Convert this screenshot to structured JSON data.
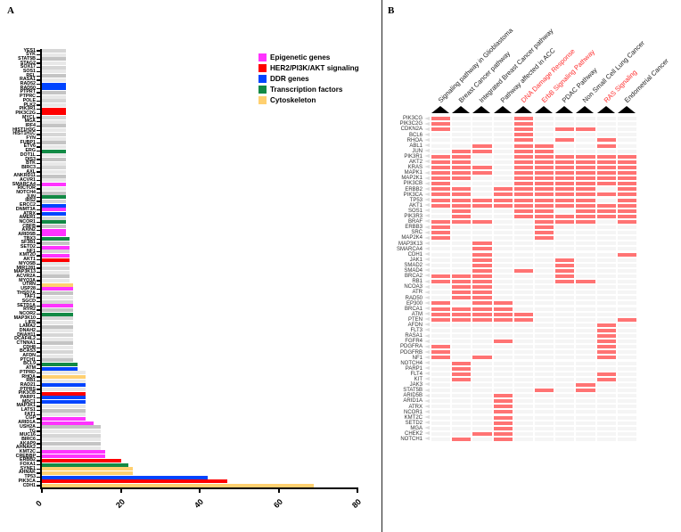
{
  "panels": {
    "a": "A",
    "b": "B"
  },
  "colors": {
    "epigenetic": "#ff33ff",
    "her2": "#ff0000",
    "ddr": "#0044ff",
    "tf": "#128a45",
    "cyto": "#ffd070",
    "other1": "#d6d6d6",
    "other2": "#e8e8e8",
    "other3": "#c4c4c4",
    "heat_on": "#ff7373",
    "heat_off": "#f5f5f5",
    "header_red": "#ff2b2b"
  },
  "legend": [
    {
      "key": "epigenetic",
      "label": "Epigenetic genes"
    },
    {
      "key": "her2",
      "label": "HER2/PI3K/AKT signaling"
    },
    {
      "key": "ddr",
      "label": "DDR genes"
    },
    {
      "key": "tf",
      "label": "Transcription factors"
    },
    {
      "key": "cyto",
      "label": "Cytoskeleton"
    }
  ],
  "chart_data": [
    {
      "type": "bar",
      "orientation": "horizontal",
      "title": "",
      "xlabel": "",
      "ylabel": "",
      "xlim": [
        0,
        80
      ],
      "xticks": [
        "0",
        "20",
        "40",
        "60",
        "80"
      ],
      "legend_position": "top-right",
      "categories": [
        "YES1",
        "SYK",
        "STAT5B",
        "STAG2",
        "SOX17",
        "SOS1",
        "REL",
        "RASA1",
        "RAD52",
        "RAD50",
        "PTPRT",
        "PTPRC",
        "POLE",
        "PLK2",
        "PIK3R1",
        "PIK3C2G",
        "MYCL",
        "MGA",
        "IRF4",
        "HIST1H3G",
        "HIST1H1C",
        "FYN",
        "FUBP1",
        "ETV6",
        "ERG",
        "DOT1L",
        "DIS3",
        "BTK",
        "BIRC3",
        "AXL",
        "ANKRD11",
        "ACVR1",
        "SMARCA4",
        "RICTOR",
        "NOTCH4",
        "JUN",
        "IRS2",
        "ERCC2",
        "DNMT3A",
        "ATRX",
        "AMER1",
        "NCOR1",
        "CBFB",
        "AXIN2",
        "ARID5B",
        "TBX3",
        "SF3B1",
        "SETD2",
        "NF1",
        "KMT2D",
        "AKT1",
        "MYO5B",
        "MIR1281",
        "MAP3K13",
        "ACVR2A",
        "MYO3A",
        "UTRN",
        "USP28",
        "THSD7A",
        "TAF1",
        "SGCD",
        "SETD1A",
        "RYR2",
        "NCOR2",
        "MAP3K10",
        "LIFR",
        "LAMA2",
        "DNAH2",
        "DNAH11",
        "DCAF4L2",
        "CTNNA1",
        "CDH8",
        "BCAS3",
        "AFDN",
        "PTCH1",
        "BCL9",
        "ATM",
        "PTPRD",
        "RHOA",
        "RB1",
        "RAD21",
        "PTPRS",
        "PIK3CB",
        "PARP1",
        "MDC1",
        "MAP3K1",
        "LATS1",
        "FAT1",
        "CGP",
        "ARID1A",
        "USH2A",
        "TG",
        "MUC16",
        "BIRC6",
        "AKAP9",
        "AHNAK2",
        "KMT2C",
        "CREBBP",
        "ERBB2",
        "FOXA1",
        "SYNE1",
        "AHNAK",
        "TP53",
        "PIK3CA",
        "CDH1"
      ],
      "values": [
        6,
        6,
        6,
        6,
        6,
        6,
        6,
        6,
        6,
        6,
        6,
        6,
        6,
        6,
        6,
        6,
        6,
        6,
        6,
        6,
        6,
        6,
        6,
        6,
        6,
        6,
        6,
        6,
        6,
        6,
        6,
        6,
        6,
        6,
        6,
        6,
        6,
        6,
        6,
        6,
        6,
        6,
        6,
        6,
        6,
        7,
        7,
        7,
        7,
        7,
        7,
        7,
        7,
        7,
        7,
        7,
        8,
        8,
        8,
        8,
        8,
        8,
        8,
        8,
        8,
        8,
        8,
        8,
        8,
        8,
        8,
        8,
        8,
        8,
        8,
        9,
        9,
        11,
        11,
        11,
        11,
        11,
        11,
        11,
        11,
        11,
        11,
        11,
        11,
        13,
        15,
        15,
        15,
        15,
        15,
        15,
        16,
        16,
        20,
        22,
        23,
        23,
        42,
        47,
        69
      ],
      "groups": [
        "o",
        "o",
        "o",
        "o",
        "o",
        "o",
        "o",
        "o",
        "ddr",
        "ddr",
        "o",
        "o",
        "o",
        "o",
        "her2",
        "her2",
        "o",
        "o",
        "o",
        "o",
        "o",
        "o",
        "o",
        "o",
        "tf",
        "o",
        "o",
        "o",
        "o",
        "o",
        "o",
        "o",
        "epigenetic",
        "o",
        "o",
        "tf",
        "o",
        "ddr",
        "epigenetic",
        "ddr",
        "o",
        "tf",
        "o",
        "epigenetic",
        "epigenetic",
        "tf",
        "o",
        "epigenetic",
        "o",
        "epigenetic",
        "her2",
        "o",
        "o",
        "o",
        "o",
        "o",
        "cyto",
        "epigenetic",
        "o",
        "o",
        "o",
        "epigenetic",
        "o",
        "tf",
        "o",
        "o",
        "o",
        "o",
        "o",
        "o",
        "o",
        "o",
        "o",
        "o",
        "o",
        "tf",
        "ddr",
        "o",
        "cyto",
        "o",
        "ddr",
        "o",
        "her2",
        "ddr",
        "ddr",
        "o",
        "o",
        "o",
        "epigenetic",
        "epigenetic",
        "o",
        "o",
        "o",
        "o",
        "o",
        "o",
        "epigenetic",
        "epigenetic",
        "her2",
        "tf",
        "cyto",
        "cyto",
        "ddr",
        "her2",
        "cyto"
      ]
    },
    {
      "type": "heatmap",
      "title": "",
      "columns": [
        {
          "label": "Signaling pathway in Glioblastoma",
          "highlight": false
        },
        {
          "label": "Breast Cancer pathway",
          "highlight": false
        },
        {
          "label": "Integrated Breast Cancer pathway",
          "highlight": false
        },
        {
          "label": "Pathway affected in ACC",
          "highlight": false
        },
        {
          "label": "DNA Damage Response",
          "highlight": true
        },
        {
          "label": "ErbB Signaling Pathway",
          "highlight": true
        },
        {
          "label": "PDAC Pathway",
          "highlight": false
        },
        {
          "label": "Non Small Cell Lung Cancer",
          "highlight": false
        },
        {
          "label": "RAS Signaling",
          "highlight": true
        },
        {
          "label": "Endometrial Cancer",
          "highlight": false
        }
      ],
      "rows": [
        {
          "gene": "PIK3CG",
          "on": [
            1,
            5
          ]
        },
        {
          "gene": "PIK3C2G",
          "on": [
            1,
            5
          ]
        },
        {
          "gene": "CDKN2A",
          "on": [
            1,
            5,
            7,
            8
          ]
        },
        {
          "gene": "BCL6",
          "on": [
            5
          ]
        },
        {
          "gene": "RHOA",
          "on": [
            5,
            7,
            9
          ]
        },
        {
          "gene": "ABL1",
          "on": [
            3,
            5,
            6,
            9
          ]
        },
        {
          "gene": "JUN",
          "on": [
            2,
            3,
            5,
            6
          ]
        },
        {
          "gene": "PIK3R1",
          "on": [
            1,
            2,
            5,
            6,
            7,
            8,
            9,
            10
          ]
        },
        {
          "gene": "AKT2",
          "on": [
            1,
            2,
            5,
            6,
            7,
            8,
            9,
            10
          ]
        },
        {
          "gene": "KRAS",
          "on": [
            1,
            2,
            3,
            5,
            6,
            7,
            8,
            9,
            10
          ]
        },
        {
          "gene": "MAPK1",
          "on": [
            1,
            2,
            3,
            5,
            6,
            7,
            8,
            9,
            10
          ]
        },
        {
          "gene": "MAP2K1",
          "on": [
            1,
            2,
            5,
            6,
            7,
            8,
            9,
            10
          ]
        },
        {
          "gene": "PIK3CB",
          "on": [
            1,
            5,
            6,
            7,
            8,
            9,
            10
          ]
        },
        {
          "gene": "ERBB2",
          "on": [
            1,
            2,
            4,
            5,
            6,
            7,
            8,
            10
          ]
        },
        {
          "gene": "PIK3CA",
          "on": [
            1,
            2,
            4,
            5,
            6,
            7,
            8,
            9,
            10
          ]
        },
        {
          "gene": "TP53",
          "on": [
            1,
            2,
            3,
            4,
            5,
            6,
            7,
            8,
            10
          ]
        },
        {
          "gene": "AKT1",
          "on": [
            1,
            2,
            3,
            4,
            5,
            6,
            7,
            8,
            9,
            10
          ]
        },
        {
          "gene": "SOS1",
          "on": [
            2,
            5,
            6,
            8,
            9,
            10
          ]
        },
        {
          "gene": "PIK3R3",
          "on": [
            2,
            5,
            6,
            7,
            8,
            9,
            10
          ]
        },
        {
          "gene": "BRAF",
          "on": [
            1,
            2,
            3,
            6,
            7,
            8,
            10
          ]
        },
        {
          "gene": "ERBB3",
          "on": [
            1,
            6
          ]
        },
        {
          "gene": "SRC",
          "on": [
            1,
            6
          ]
        },
        {
          "gene": "MAP2K4",
          "on": [
            1,
            6
          ]
        },
        {
          "gene": "MAP3K13",
          "on": [
            3
          ]
        },
        {
          "gene": "SMARCA4",
          "on": [
            3
          ]
        },
        {
          "gene": "CDH1",
          "on": [
            3,
            10
          ]
        },
        {
          "gene": "JAK1",
          "on": [
            3,
            7
          ]
        },
        {
          "gene": "SMAD2",
          "on": [
            3,
            7
          ]
        },
        {
          "gene": "SMAD4",
          "on": [
            3,
            5,
            7
          ]
        },
        {
          "gene": "BRCA2",
          "on": [
            1,
            2,
            3,
            7
          ]
        },
        {
          "gene": "RB1",
          "on": [
            1,
            2,
            3,
            7,
            8
          ]
        },
        {
          "gene": "NCOA3",
          "on": [
            2,
            3
          ]
        },
        {
          "gene": "ATR",
          "on": [
            2,
            3
          ]
        },
        {
          "gene": "RAD50",
          "on": [
            2,
            3
          ]
        },
        {
          "gene": "EP300",
          "on": [
            1,
            3,
            4
          ]
        },
        {
          "gene": "BRCA1",
          "on": [
            1,
            2,
            3,
            4
          ]
        },
        {
          "gene": "ATM",
          "on": [
            1,
            2,
            3,
            4,
            5
          ]
        },
        {
          "gene": "PTEN",
          "on": [
            1,
            2,
            3,
            4,
            5,
            10
          ]
        },
        {
          "gene": "AFDN",
          "on": [
            9
          ]
        },
        {
          "gene": "FLT3",
          "on": [
            9
          ]
        },
        {
          "gene": "RASA1",
          "on": [
            9
          ]
        },
        {
          "gene": "FGFR4",
          "on": [
            4,
            9
          ]
        },
        {
          "gene": "PDGFRA",
          "on": [
            1,
            9
          ]
        },
        {
          "gene": "PDGFRB",
          "on": [
            1,
            9
          ]
        },
        {
          "gene": "NF1",
          "on": [
            1,
            3,
            9
          ]
        },
        {
          "gene": "NOTCH4",
          "on": [
            2
          ]
        },
        {
          "gene": "PARP1",
          "on": [
            2
          ]
        },
        {
          "gene": "FLT4",
          "on": [
            2,
            9
          ]
        },
        {
          "gene": "KIT",
          "on": [
            2,
            9
          ]
        },
        {
          "gene": "JAK3",
          "on": [
            8
          ]
        },
        {
          "gene": "STAT5B",
          "on": [
            6,
            8
          ]
        },
        {
          "gene": "ARID5B",
          "on": [
            4
          ]
        },
        {
          "gene": "ARID1A",
          "on": [
            4
          ]
        },
        {
          "gene": "ATRX",
          "on": [
            4
          ]
        },
        {
          "gene": "NCOR1",
          "on": [
            4
          ]
        },
        {
          "gene": "KMT2C",
          "on": [
            4
          ]
        },
        {
          "gene": "SETD2",
          "on": [
            4
          ]
        },
        {
          "gene": "MGA",
          "on": [
            4
          ]
        },
        {
          "gene": "CHEK2",
          "on": [
            3,
            4
          ]
        },
        {
          "gene": "NOTCH1",
          "on": [
            2,
            4
          ]
        }
      ]
    }
  ]
}
